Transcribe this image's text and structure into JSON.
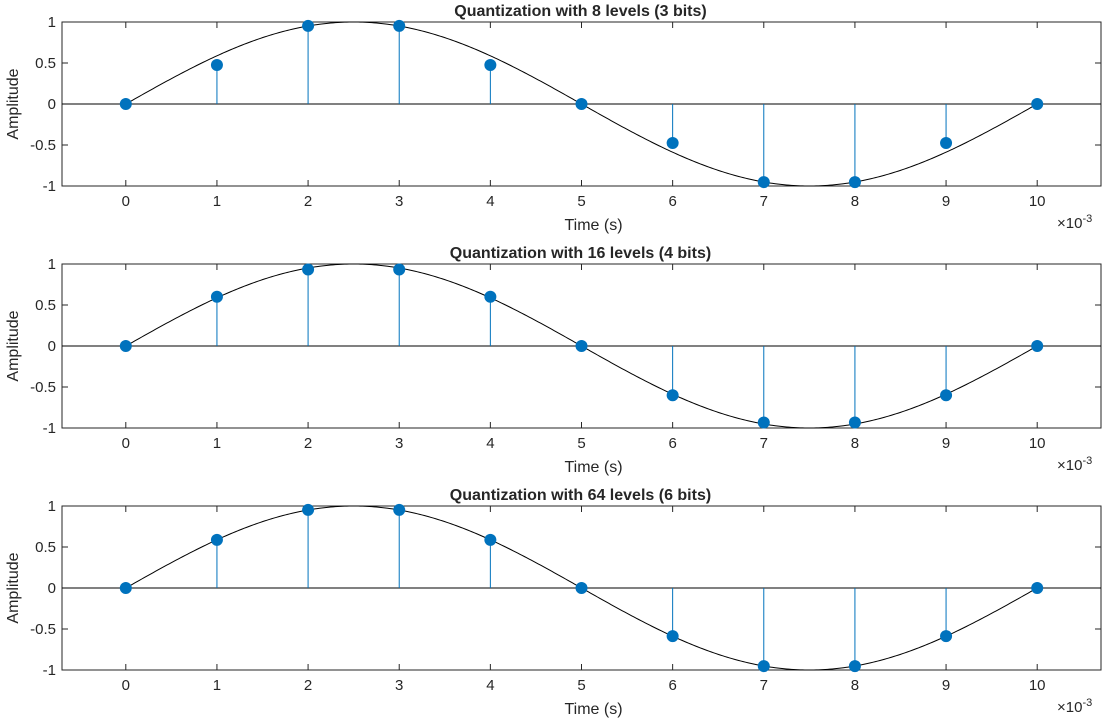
{
  "colors": {
    "stem": "#0072BD",
    "marker": "#0072BD",
    "curve": "#000000",
    "axes": "#262626",
    "background": "#ffffff"
  },
  "chart_data": [
    {
      "type": "stem",
      "title": "Quantization with 8 levels (3 bits)",
      "xlabel": "Time (s)",
      "ylabel": "Amplitude",
      "x_exponent_label": "×10",
      "x_exponent_power": "-3",
      "xlim": [
        -0.7,
        10.7
      ],
      "ylim": [
        -1,
        1
      ],
      "xticks": [
        "0",
        "1",
        "2",
        "3",
        "4",
        "5",
        "6",
        "7",
        "8",
        "9",
        "10"
      ],
      "yticks": [
        "1",
        "0.5",
        "0",
        "-0.5",
        "-1"
      ],
      "grid": false,
      "series": [
        {
          "kind": "stem",
          "x": [
            0,
            1,
            2,
            3,
            4,
            5,
            6,
            7,
            8,
            9,
            10
          ],
          "y": [
            0,
            0.4762,
            0.9524,
            0.9524,
            0.4762,
            0,
            -0.4762,
            -0.9524,
            -0.9524,
            -0.4762,
            0
          ]
        },
        {
          "kind": "line",
          "function": "sin(2*pi*100*t)",
          "x_range": [
            0,
            10
          ]
        }
      ]
    },
    {
      "type": "stem",
      "title": "Quantization with 16 levels (4 bits)",
      "xlabel": "Time (s)",
      "ylabel": "Amplitude",
      "x_exponent_label": "×10",
      "x_exponent_power": "-3",
      "xlim": [
        -0.7,
        10.7
      ],
      "ylim": [
        -1,
        1
      ],
      "xticks": [
        "0",
        "1",
        "2",
        "3",
        "4",
        "5",
        "6",
        "7",
        "8",
        "9",
        "10"
      ],
      "yticks": [
        "1",
        "0.5",
        "0",
        "-0.5",
        "-1"
      ],
      "grid": false,
      "series": [
        {
          "kind": "stem",
          "x": [
            0,
            1,
            2,
            3,
            4,
            5,
            6,
            7,
            8,
            9,
            10
          ],
          "y": [
            0,
            0.6,
            0.9333,
            0.9333,
            0.6,
            0,
            -0.6,
            -0.9333,
            -0.9333,
            -0.6,
            0
          ]
        },
        {
          "kind": "line",
          "function": "sin(2*pi*100*t)",
          "x_range": [
            0,
            10
          ]
        }
      ]
    },
    {
      "type": "stem",
      "title": "Quantization with 64 levels (6 bits)",
      "xlabel": "Time (s)",
      "ylabel": "Amplitude",
      "x_exponent_label": "×10",
      "x_exponent_power": "-3",
      "xlim": [
        -0.7,
        10.7
      ],
      "ylim": [
        -1,
        1
      ],
      "xticks": [
        "0",
        "1",
        "2",
        "3",
        "4",
        "5",
        "6",
        "7",
        "8",
        "9",
        "10"
      ],
      "yticks": [
        "1",
        "0.5",
        "0",
        "-0.5",
        "-1"
      ],
      "grid": false,
      "series": [
        {
          "kind": "stem",
          "x": [
            0,
            1,
            2,
            3,
            4,
            5,
            6,
            7,
            8,
            9,
            10
          ],
          "y": [
            0,
            0.5873,
            0.9524,
            0.9524,
            0.5873,
            0,
            -0.5873,
            -0.9524,
            -0.9524,
            -0.5873,
            0
          ]
        },
        {
          "kind": "line",
          "function": "sin(2*pi*100*t)",
          "x_range": [
            0,
            10
          ]
        }
      ]
    }
  ]
}
